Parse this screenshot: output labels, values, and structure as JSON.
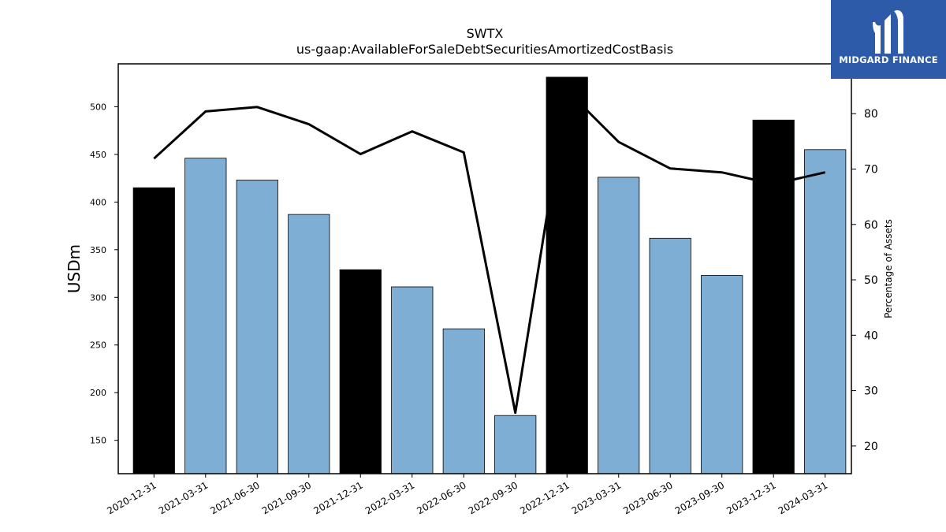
{
  "chart_data": {
    "type": "bar",
    "title": "SWTX",
    "subtitle": "us-gaap:AvailableForSaleDebtSecuritiesAmortizedCostBasis",
    "ylabel": "USDm",
    "y2label": "Percentage of Assets",
    "categories": [
      "2020-12-31",
      "2021-03-31",
      "2021-06-30",
      "2021-09-30",
      "2021-12-31",
      "2022-03-31",
      "2022-06-30",
      "2022-09-30",
      "2022-12-31",
      "2023-03-31",
      "2023-06-30",
      "2023-09-30",
      "2023-12-31",
      "2024-03-31"
    ],
    "series": [
      {
        "kind": "bar",
        "axis": "left",
        "values": [
          415,
          446,
          423,
          387,
          329,
          311,
          267,
          176,
          531,
          426,
          362,
          323,
          486,
          455
        ],
        "highlight": [
          true,
          false,
          false,
          false,
          true,
          false,
          false,
          false,
          true,
          false,
          false,
          false,
          true,
          false
        ]
      },
      {
        "kind": "line",
        "axis": "right",
        "values": [
          71.9,
          80.4,
          81.2,
          78.1,
          72.7,
          76.8,
          73.0,
          26.0,
          84.2,
          74.9,
          70.1,
          69.4,
          67.3,
          69.4
        ]
      }
    ],
    "ylim": [
      115,
      545
    ],
    "y_ticks": [
      150,
      200,
      250,
      300,
      350,
      400,
      450,
      500
    ],
    "y2lim": [
      15,
      89
    ],
    "y2_ticks": [
      20,
      30,
      40,
      50,
      60,
      70,
      80
    ],
    "colors": {
      "bar": "#7eaed3",
      "highlight": "#000000",
      "line": "#000000"
    }
  },
  "logo": {
    "text": "MIDGARD FINANCE"
  }
}
